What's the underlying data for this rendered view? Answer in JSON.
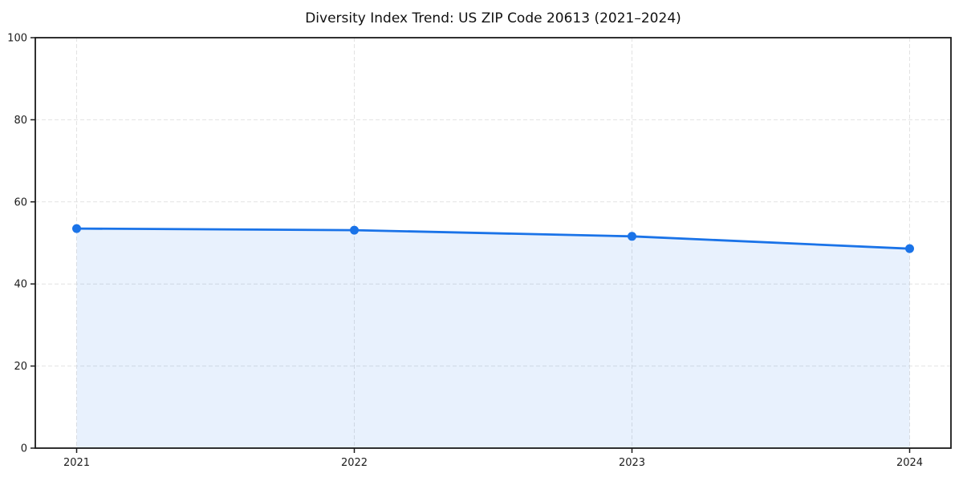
{
  "chart_data": {
    "type": "area",
    "title": "Diversity Index Trend: US ZIP Code 20613 (2021–2024)",
    "x": [
      "2021",
      "2022",
      "2023",
      "2024"
    ],
    "series": [
      {
        "name": "Diversity Index",
        "values": [
          53.5,
          53.1,
          51.6,
          48.6
        ]
      }
    ],
    "xlabel": "",
    "ylabel": "",
    "ylim": [
      0,
      100
    ],
    "yticks": [
      0,
      20,
      40,
      60,
      80,
      100
    ],
    "grid": true,
    "grid_style": "dashed",
    "legend": false,
    "marker": "circle",
    "colors": {
      "line": "#1a73e8",
      "marker": "#1a73e8",
      "fill": "#1a73e8",
      "fill_opacity": "0.10",
      "grid": "#e2e2e2",
      "spine": "#1a1a1a",
      "tick_text": "#1c1c1c",
      "background": "#ffffff"
    }
  }
}
